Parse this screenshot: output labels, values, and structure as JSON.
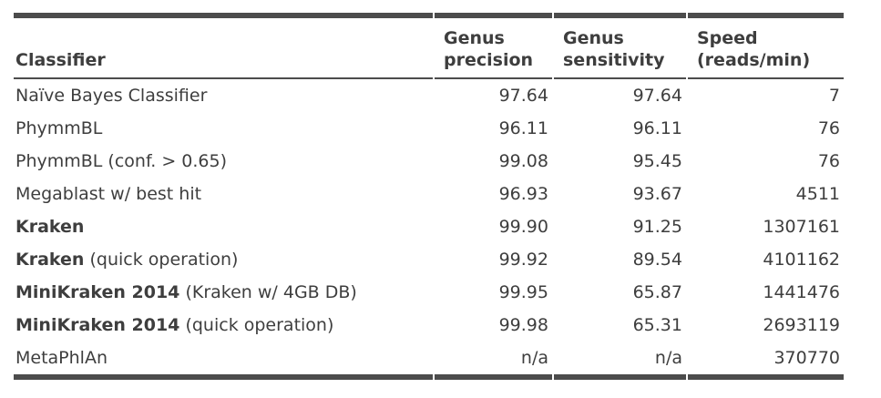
{
  "colors": {
    "text": "#3e3e3e",
    "border": "#4c4c4c",
    "background": "#ffffff"
  },
  "table": {
    "headers": {
      "classifier": "Classifier",
      "precision_line1": "Genus",
      "precision_line2": "precision",
      "sensitivity_line1": "Genus",
      "sensitivity_line2": "sensitivity",
      "speed_line1": "Speed",
      "speed_line2": "(reads/min)"
    },
    "rows": [
      {
        "name_bold": "",
        "name_rest": "Naïve Bayes Classifier",
        "precision": "97.64",
        "sensitivity": "97.64",
        "speed": "7"
      },
      {
        "name_bold": "",
        "name_rest": "PhymmBL",
        "precision": "96.11",
        "sensitivity": "96.11",
        "speed": "76"
      },
      {
        "name_bold": "",
        "name_rest": "PhymmBL (conf. > 0.65)",
        "precision": "99.08",
        "sensitivity": "95.45",
        "speed": "76"
      },
      {
        "name_bold": "",
        "name_rest": "Megablast w/ best hit",
        "precision": "96.93",
        "sensitivity": "93.67",
        "speed": "4511"
      },
      {
        "name_bold": "Kraken",
        "name_rest": "",
        "precision": "99.90",
        "sensitivity": "91.25",
        "speed": "1307161"
      },
      {
        "name_bold": "Kraken",
        "name_rest": " (quick operation)",
        "precision": "99.92",
        "sensitivity": "89.54",
        "speed": "4101162"
      },
      {
        "name_bold": "MiniKraken 2014",
        "name_rest": " (Kraken w/ 4GB DB)",
        "precision": "99.95",
        "sensitivity": "65.87",
        "speed": "1441476"
      },
      {
        "name_bold": "MiniKraken 2014",
        "name_rest": " (quick operation)",
        "precision": "99.98",
        "sensitivity": "65.31",
        "speed": "2693119"
      },
      {
        "name_bold": "",
        "name_rest": "MetaPhlAn",
        "precision": "n/a",
        "sensitivity": "n/a",
        "speed": "370770"
      }
    ]
  },
  "chart_data": {
    "type": "table",
    "columns": [
      "Classifier",
      "Genus precision",
      "Genus sensitivity",
      "Speed (reads/min)"
    ],
    "rows": [
      [
        "Naïve Bayes Classifier",
        97.64,
        97.64,
        7
      ],
      [
        "PhymmBL",
        96.11,
        96.11,
        76
      ],
      [
        "PhymmBL (conf. > 0.65)",
        99.08,
        95.45,
        76
      ],
      [
        "Megablast w/ best hit",
        96.93,
        93.67,
        4511
      ],
      [
        "Kraken",
        99.9,
        91.25,
        1307161
      ],
      [
        "Kraken (quick operation)",
        99.92,
        89.54,
        4101162
      ],
      [
        "MiniKraken 2014 (Kraken w/ 4GB DB)",
        99.95,
        65.87,
        1441476
      ],
      [
        "MiniKraken 2014 (quick operation)",
        99.98,
        65.31,
        2693119
      ],
      [
        "MetaPhlAn",
        "n/a",
        "n/a",
        370770
      ]
    ]
  }
}
